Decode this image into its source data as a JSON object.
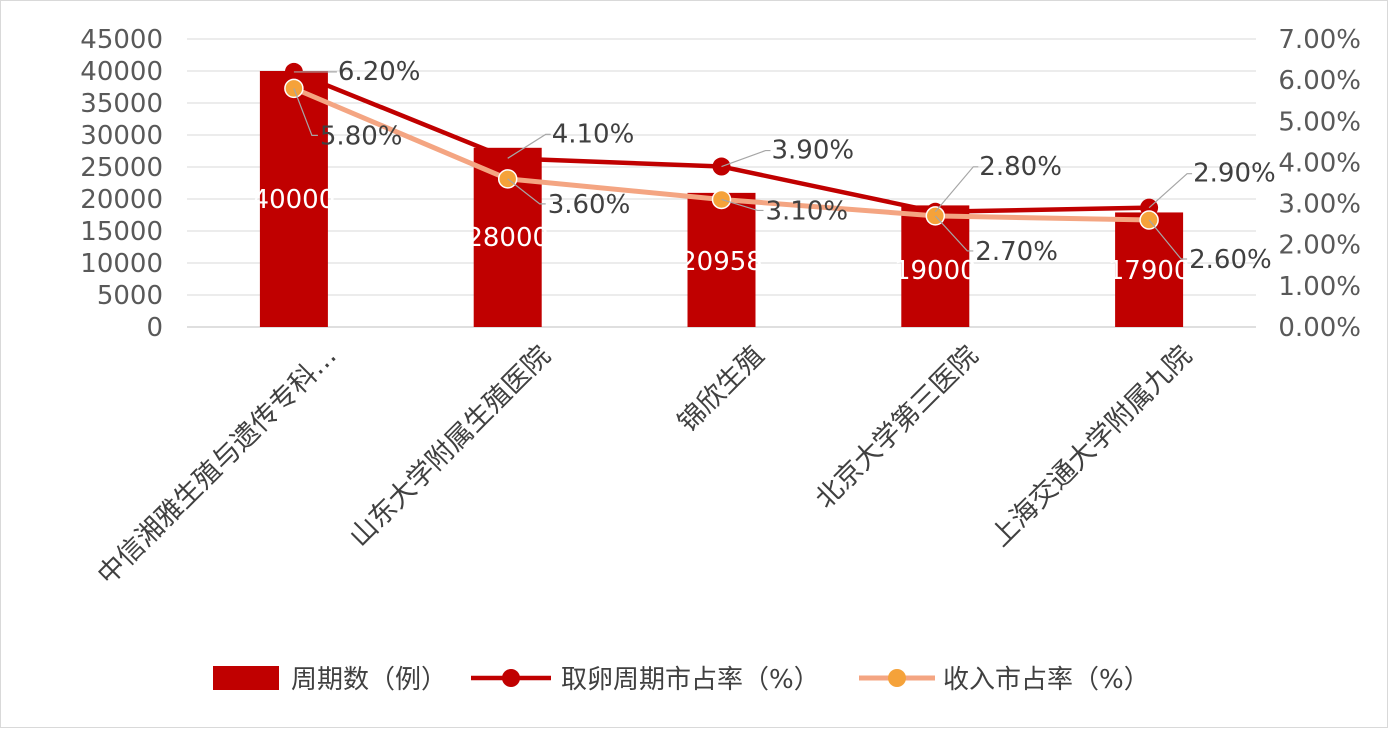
{
  "chart_data": {
    "type": "bar",
    "categories": [
      "中信湘雅生殖与遗传专科…",
      "山东大学附属生殖医院",
      "锦欣生殖",
      "北京大学第三医院",
      "上海交通大学附属九院"
    ],
    "bar_labels": [
      "40000",
      "28000",
      "20958",
      "19000",
      "17900"
    ],
    "series": [
      {
        "name": "周期数（例）",
        "type": "bar",
        "axis": "left",
        "values": [
          40000,
          28000,
          20958,
          19000,
          17900
        ],
        "color": "#c00000"
      },
      {
        "name": "取卵周期市占率（%）",
        "type": "line",
        "axis": "right",
        "values": [
          6.2,
          4.1,
          3.9,
          2.8,
          2.9
        ],
        "labels": [
          "6.20%",
          "4.10%",
          "3.90%",
          "2.80%",
          "2.90%"
        ],
        "color": "#c00000"
      },
      {
        "name": "收入市占率（%）",
        "type": "line",
        "axis": "right",
        "values": [
          5.8,
          3.6,
          3.1,
          2.7,
          2.6
        ],
        "labels": [
          "5.80%",
          "3.60%",
          "3.10%",
          "2.70%",
          "2.60%"
        ],
        "color": "#f4a582"
      }
    ],
    "left_axis": {
      "min": 0,
      "max": 45000,
      "ticks": [
        "0",
        "5000",
        "10000",
        "15000",
        "20000",
        "25000",
        "30000",
        "35000",
        "40000",
        "45000"
      ]
    },
    "right_axis": {
      "min": 0,
      "max": 7,
      "ticks": [
        "0.00%",
        "1.00%",
        "2.00%",
        "3.00%",
        "4.00%",
        "5.00%",
        "6.00%",
        "7.00%"
      ]
    },
    "grid": true,
    "legend_position": "bottom",
    "colors": {
      "bar": "#c00000",
      "line1": "#c00000",
      "line2_stroke": "#f4a582",
      "line2_marker": "#f5a23a",
      "leader": "#a6a6a6"
    }
  }
}
